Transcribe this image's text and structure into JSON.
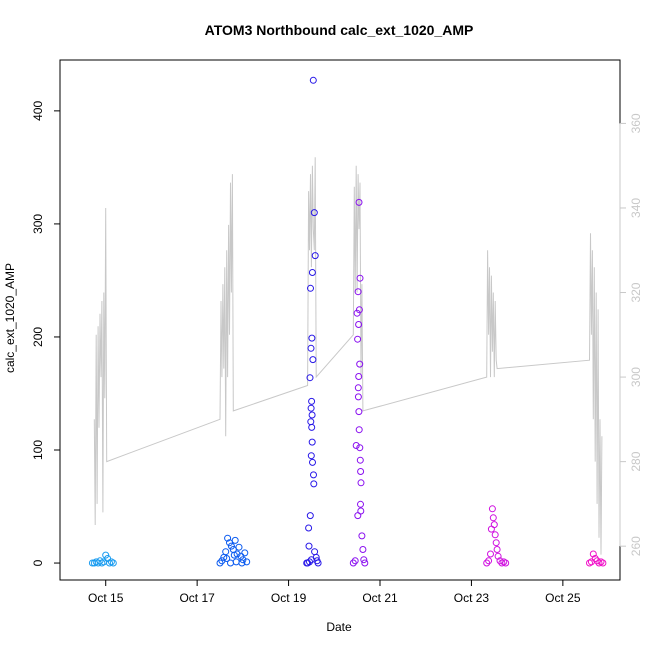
{
  "chart_data": {
    "type": "scatter",
    "title": "ATOM3 Northbound calc_ext_1020_AMP",
    "xlabel": "Date",
    "ylabel": "calc_ext_1020_AMP",
    "xlim": [
      "2023-10-14T00:00",
      "2023-10-26T06:00"
    ],
    "ylim": [
      -15,
      445
    ],
    "y2lim": [
      252,
      375
    ],
    "x_ticks": [
      {
        "date": "2023-10-15T00:00",
        "label": "Oct 15"
      },
      {
        "date": "2023-10-17T00:00",
        "label": "Oct 17"
      },
      {
        "date": "2023-10-19T00:00",
        "label": "Oct 19"
      },
      {
        "date": "2023-10-21T00:00",
        "label": "Oct 21"
      },
      {
        "date": "2023-10-23T00:00",
        "label": "Oct 23"
      },
      {
        "date": "2023-10-25T00:00",
        "label": "Oct 25"
      }
    ],
    "y_ticks": [
      0,
      100,
      200,
      300,
      400
    ],
    "y2_ticks": [
      260,
      280,
      300,
      320,
      340,
      360
    ],
    "grid": false,
    "colors": {
      "line": "#c8c8c8",
      "axis": "#000000",
      "right_axis": "#c8c8c8"
    },
    "series": [
      {
        "color": "#1a9cf0",
        "points": [
          [
            "2023-10-14T17:00",
            0
          ],
          [
            "2023-10-14T18:00",
            0
          ],
          [
            "2023-10-14T19:00",
            1
          ],
          [
            "2023-10-14T20:00",
            0
          ],
          [
            "2023-10-14T21:00",
            2
          ],
          [
            "2023-10-14T22:00",
            0
          ],
          [
            "2023-10-14T23:00",
            1
          ],
          [
            "2023-10-15T00:00",
            7
          ],
          [
            "2023-10-15T01:00",
            4
          ],
          [
            "2023-10-15T02:00",
            0
          ],
          [
            "2023-10-15T03:00",
            1
          ],
          [
            "2023-10-15T04:00",
            0
          ]
        ]
      },
      {
        "color": "#0a5af0",
        "points": [
          [
            "2023-10-17T12:00",
            0
          ],
          [
            "2023-10-17T13:00",
            2
          ],
          [
            "2023-10-17T14:00",
            5
          ],
          [
            "2023-10-17T15:00",
            10
          ],
          [
            "2023-10-17T16:00",
            22
          ],
          [
            "2023-10-17T17:00",
            18
          ],
          [
            "2023-10-17T18:00",
            15
          ],
          [
            "2023-10-17T19:00",
            12
          ],
          [
            "2023-10-17T20:00",
            20
          ],
          [
            "2023-10-17T21:00",
            8
          ],
          [
            "2023-10-17T22:00",
            14
          ],
          [
            "2023-10-17T23:00",
            6
          ],
          [
            "2023-10-18T00:00",
            3
          ],
          [
            "2023-10-18T01:00",
            9
          ],
          [
            "2023-10-18T02:00",
            1
          ],
          [
            "2023-10-17T17:30",
            0
          ],
          [
            "2023-10-17T20:30",
            1
          ],
          [
            "2023-10-17T23:30",
            0
          ],
          [
            "2023-10-17T15:30",
            4
          ],
          [
            "2023-10-17T19:30",
            7
          ]
        ]
      },
      {
        "color": "#2818e8",
        "points": [
          [
            "2023-10-19T10:00",
            0
          ],
          [
            "2023-10-19T11:00",
            1
          ],
          [
            "2023-10-19T12:00",
            3
          ],
          [
            "2023-10-19T13:00",
            427
          ],
          [
            "2023-10-19T13:30",
            310
          ],
          [
            "2023-10-19T14:00",
            272
          ],
          [
            "2023-10-19T12:30",
            257
          ],
          [
            "2023-10-19T11:30",
            243
          ],
          [
            "2023-10-19T12:15",
            199
          ],
          [
            "2023-10-19T11:45",
            190
          ],
          [
            "2023-10-19T12:45",
            180
          ],
          [
            "2023-10-19T11:15",
            164
          ],
          [
            "2023-10-19T12:05",
            143
          ],
          [
            "2023-10-19T11:50",
            137
          ],
          [
            "2023-10-19T12:20",
            131
          ],
          [
            "2023-10-19T11:40",
            125
          ],
          [
            "2023-10-19T12:10",
            120
          ],
          [
            "2023-10-19T12:25",
            107
          ],
          [
            "2023-10-19T11:55",
            95
          ],
          [
            "2023-10-19T12:35",
            89
          ],
          [
            "2023-10-19T13:05",
            78
          ],
          [
            "2023-10-19T13:15",
            70
          ],
          [
            "2023-10-19T11:25",
            42
          ],
          [
            "2023-10-19T10:30",
            31
          ],
          [
            "2023-10-19T10:45",
            15
          ],
          [
            "2023-10-19T13:40",
            10
          ],
          [
            "2023-10-19T14:30",
            5
          ],
          [
            "2023-10-19T15:00",
            2
          ],
          [
            "2023-10-19T15:30",
            0
          ],
          [
            "2023-10-19T09:30",
            0
          ]
        ]
      },
      {
        "color": "#8a10f0",
        "points": [
          [
            "2023-10-20T10:00",
            0
          ],
          [
            "2023-10-20T11:00",
            2
          ],
          [
            "2023-10-20T12:00",
            221
          ],
          [
            "2023-10-20T13:00",
            319
          ],
          [
            "2023-10-20T13:30",
            252
          ],
          [
            "2023-10-20T12:30",
            240
          ],
          [
            "2023-10-20T13:10",
            224
          ],
          [
            "2023-10-20T12:45",
            211
          ],
          [
            "2023-10-20T12:15",
            198
          ],
          [
            "2023-10-20T13:20",
            176
          ],
          [
            "2023-10-20T12:50",
            165
          ],
          [
            "2023-10-20T12:35",
            155
          ],
          [
            "2023-10-20T12:40",
            147
          ],
          [
            "2023-10-20T12:55",
            134
          ],
          [
            "2023-10-20T13:05",
            118
          ],
          [
            "2023-10-20T11:30",
            104
          ],
          [
            "2023-10-20T13:25",
            102
          ],
          [
            "2023-10-20T13:40",
            91
          ],
          [
            "2023-10-20T13:50",
            81
          ],
          [
            "2023-10-20T14:00",
            71
          ],
          [
            "2023-10-20T13:45",
            52
          ],
          [
            "2023-10-20T13:55",
            46
          ],
          [
            "2023-10-20T12:20",
            42
          ],
          [
            "2023-10-20T14:30",
            24
          ],
          [
            "2023-10-20T15:00",
            12
          ],
          [
            "2023-10-20T15:30",
            3
          ],
          [
            "2023-10-20T16:00",
            0
          ]
        ]
      },
      {
        "color": "#d010e0",
        "points": [
          [
            "2023-10-23T08:00",
            0
          ],
          [
            "2023-10-23T09:00",
            2
          ],
          [
            "2023-10-23T10:00",
            8
          ],
          [
            "2023-10-23T11:00",
            48
          ],
          [
            "2023-10-23T11:30",
            40
          ],
          [
            "2023-10-23T12:00",
            34
          ],
          [
            "2023-10-23T10:30",
            30
          ],
          [
            "2023-10-23T12:30",
            25
          ],
          [
            "2023-10-23T13:00",
            18
          ],
          [
            "2023-10-23T13:30",
            12
          ],
          [
            "2023-10-23T14:00",
            6
          ],
          [
            "2023-10-23T15:00",
            2
          ],
          [
            "2023-10-23T16:00",
            0
          ],
          [
            "2023-10-23T17:00",
            1
          ],
          [
            "2023-10-23T18:00",
            0
          ]
        ]
      },
      {
        "color": "#f010c8",
        "points": [
          [
            "2023-10-25T14:00",
            0
          ],
          [
            "2023-10-25T15:00",
            1
          ],
          [
            "2023-10-25T16:00",
            8
          ],
          [
            "2023-10-25T17:00",
            4
          ],
          [
            "2023-10-25T18:00",
            2
          ],
          [
            "2023-10-25T19:00",
            0
          ],
          [
            "2023-10-25T20:00",
            1
          ],
          [
            "2023-10-25T21:00",
            0
          ]
        ]
      }
    ],
    "line_series": {
      "axis": "right",
      "points": [
        [
          "2023-10-14T18:00",
          290
        ],
        [
          "2023-10-14T18:30",
          265
        ],
        [
          "2023-10-14T19:00",
          310
        ],
        [
          "2023-10-14T19:30",
          270
        ],
        [
          "2023-10-14T20:00",
          312
        ],
        [
          "2023-10-14T20:30",
          288
        ],
        [
          "2023-10-14T21:00",
          315
        ],
        [
          "2023-10-14T21:30",
          300
        ],
        [
          "2023-10-14T22:00",
          318
        ],
        [
          "2023-10-14T22:30",
          268
        ],
        [
          "2023-10-14T23:00",
          320
        ],
        [
          "2023-10-14T23:30",
          295
        ],
        [
          "2023-10-15T00:00",
          340
        ],
        [
          "2023-10-15T00:30",
          280
        ],
        [
          "2023-10-17T12:00",
          290
        ],
        [
          "2023-10-17T12:30",
          318
        ],
        [
          "2023-10-17T13:00",
          300
        ],
        [
          "2023-10-17T13:30",
          322
        ],
        [
          "2023-10-17T14:00",
          302
        ],
        [
          "2023-10-17T14:30",
          326
        ],
        [
          "2023-10-17T15:00",
          286
        ],
        [
          "2023-10-17T15:30",
          330
        ],
        [
          "2023-10-17T16:00",
          300
        ],
        [
          "2023-10-17T16:30",
          336
        ],
        [
          "2023-10-17T17:00",
          310
        ],
        [
          "2023-10-17T17:30",
          346
        ],
        [
          "2023-10-17T18:00",
          320
        ],
        [
          "2023-10-17T18:30",
          348
        ],
        [
          "2023-10-17T19:00",
          292
        ],
        [
          "2023-10-19T10:00",
          298
        ],
        [
          "2023-10-19T10:30",
          344
        ],
        [
          "2023-10-19T11:00",
          330
        ],
        [
          "2023-10-19T11:30",
          348
        ],
        [
          "2023-10-19T12:00",
          326
        ],
        [
          "2023-10-19T12:30",
          350
        ],
        [
          "2023-10-19T13:00",
          335
        ],
        [
          "2023-10-19T13:30",
          330
        ],
        [
          "2023-10-19T14:00",
          352
        ],
        [
          "2023-10-19T14:30",
          300
        ],
        [
          "2023-10-20T10:00",
          310
        ],
        [
          "2023-10-20T10:30",
          345
        ],
        [
          "2023-10-20T11:00",
          320
        ],
        [
          "2023-10-20T11:30",
          350
        ],
        [
          "2023-10-20T12:00",
          320
        ],
        [
          "2023-10-20T12:30",
          348
        ],
        [
          "2023-10-20T13:00",
          335
        ],
        [
          "2023-10-20T13:30",
          346
        ],
        [
          "2023-10-20T14:00",
          300
        ],
        [
          "2023-10-20T14:30",
          322
        ],
        [
          "2023-10-20T15:00",
          292
        ],
        [
          "2023-10-23T08:00",
          300
        ],
        [
          "2023-10-23T08:30",
          330
        ],
        [
          "2023-10-23T09:00",
          310
        ],
        [
          "2023-10-23T09:30",
          326
        ],
        [
          "2023-10-23T10:00",
          300
        ],
        [
          "2023-10-23T10:30",
          324
        ],
        [
          "2023-10-23T11:00",
          306
        ],
        [
          "2023-10-23T11:30",
          320
        ],
        [
          "2023-10-23T12:00",
          300
        ],
        [
          "2023-10-23T12:30",
          318
        ],
        [
          "2023-10-23T13:00",
          304
        ],
        [
          "2023-10-23T13:30",
          302
        ],
        [
          "2023-10-25T14:00",
          304
        ],
        [
          "2023-10-25T14:30",
          334
        ],
        [
          "2023-10-25T15:00",
          310
        ],
        [
          "2023-10-25T15:30",
          330
        ],
        [
          "2023-10-25T16:00",
          290
        ],
        [
          "2023-10-25T16:30",
          326
        ],
        [
          "2023-10-25T17:00",
          280
        ],
        [
          "2023-10-25T17:30",
          320
        ],
        [
          "2023-10-25T18:00",
          270
        ],
        [
          "2023-10-25T18:30",
          316
        ],
        [
          "2023-10-25T19:00",
          262
        ],
        [
          "2023-10-25T19:30",
          290
        ],
        [
          "2023-10-25T20:00",
          258
        ],
        [
          "2023-10-25T20:30",
          286
        ]
      ]
    }
  }
}
